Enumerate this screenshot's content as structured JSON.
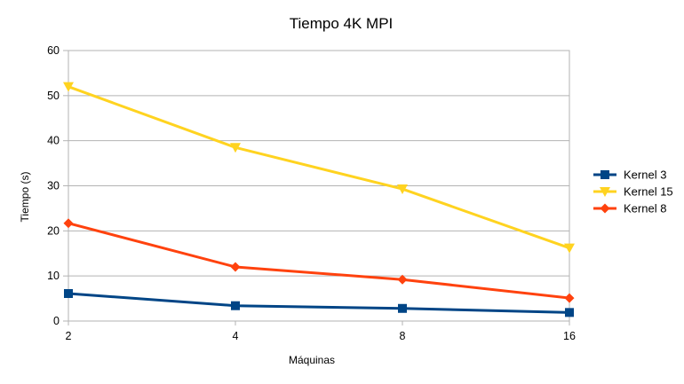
{
  "chart_data": {
    "type": "line",
    "title": "Tiempo 4K MPI",
    "xlabel": "Máquinas",
    "ylabel": "Tiempo (s)",
    "categories": [
      "2",
      "4",
      "8",
      "16"
    ],
    "ylim": [
      0,
      60
    ],
    "yticks": [
      0,
      10,
      20,
      30,
      40,
      50,
      60
    ],
    "grid": true,
    "legend_position": "right",
    "series": [
      {
        "name": "Kernel 3",
        "values": [
          6.1,
          3.4,
          2.8,
          1.9
        ],
        "color": "#004586",
        "marker": "square"
      },
      {
        "name": "Kernel 15",
        "values": [
          52,
          38.5,
          29.3,
          16.2
        ],
        "color": "#ffd320",
        "marker": "triangle-down"
      },
      {
        "name": "Kernel 8",
        "values": [
          21.7,
          12,
          9.2,
          5.1
        ],
        "color": "#ff420e",
        "marker": "diamond"
      }
    ]
  }
}
